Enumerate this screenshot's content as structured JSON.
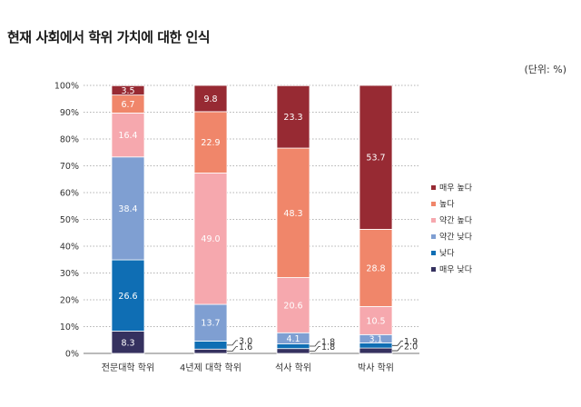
{
  "title": "현재 사회에서 학위 가치에 대한 인식",
  "unit_label": "(단위: %)",
  "chart_data": {
    "type": "bar",
    "stacked": true,
    "categories": [
      "전문대학 학위",
      "4년제 대학 학위",
      "석사 학위",
      "박사 학위"
    ],
    "series": [
      {
        "name": "매우 낮다",
        "color": "#35315f",
        "values": [
          8.3,
          1.6,
          1.8,
          2.0
        ]
      },
      {
        "name": "낮다",
        "color": "#0f6eb4",
        "values": [
          26.6,
          3.0,
          1.8,
          1.9
        ]
      },
      {
        "name": "약간 낮다",
        "color": "#7f9fd2",
        "values": [
          38.4,
          13.7,
          4.1,
          3.1
        ]
      },
      {
        "name": "약간 높다",
        "color": "#f6a8ae",
        "values": [
          16.4,
          49.0,
          20.6,
          10.5
        ]
      },
      {
        "name": "높다",
        "color": "#f0866a",
        "values": [
          6.7,
          22.9,
          48.3,
          28.8
        ]
      },
      {
        "name": "매우 높다",
        "color": "#972a33",
        "values": [
          3.5,
          9.8,
          23.3,
          53.7
        ]
      }
    ],
    "ylim": [
      0,
      100
    ],
    "yticks": [
      "0%",
      "10%",
      "20%",
      "30%",
      "40%",
      "50%",
      "60%",
      "70%",
      "80%",
      "90%",
      "100%"
    ],
    "grid": true,
    "legend_position": "right"
  }
}
